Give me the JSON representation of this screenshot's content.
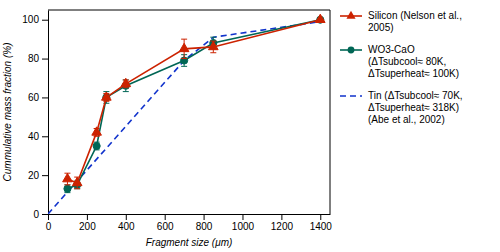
{
  "chart_data": {
    "type": "line",
    "xlabel": "Fragment size (μm)",
    "ylabel": "Cummulative mass fraction (%)",
    "xlim": [
      0,
      1450
    ],
    "ylim": [
      0,
      105
    ],
    "xticks": [
      0,
      200,
      400,
      600,
      800,
      1000,
      1200,
      1400
    ],
    "yticks": [
      0,
      20,
      40,
      60,
      80,
      100
    ],
    "grid": false,
    "legend": "right",
    "series": [
      {
        "name": "Silicon (Nelson et al.,\n2005)",
        "color": "#cc2200",
        "marker": "triangle",
        "line_style": "solid",
        "x": [
          100,
          150,
          250,
          300,
          400,
          700,
          850,
          1400
        ],
        "values": [
          18,
          16,
          42,
          60,
          67,
          85,
          86,
          100
        ],
        "errors": [
          3,
          3,
          2,
          2,
          2,
          5,
          3,
          0
        ]
      },
      {
        "name": "WO3-CaO\n(ΔTsubcool≈ 80K,\nΔTsuperheat≈ 100K)",
        "color": "#006655",
        "marker": "circle",
        "line_style": "solid",
        "x": [
          100,
          150,
          250,
          300,
          400,
          700,
          850,
          1400
        ],
        "values": [
          13,
          15,
          35,
          60,
          66,
          79,
          88,
          100
        ],
        "errors": [
          2,
          2,
          2,
          3,
          3,
          3,
          3,
          0
        ]
      },
      {
        "name": "Tin (ΔTsubcool≈ 70K,\nΔTsuperheat≈ 318K)\n(Abe et al., 2002)",
        "color": "#1133cc",
        "line_style": "dashed",
        "x": [
          0,
          700,
          850,
          1400
        ],
        "values": [
          0,
          79,
          91,
          99
        ]
      }
    ]
  }
}
